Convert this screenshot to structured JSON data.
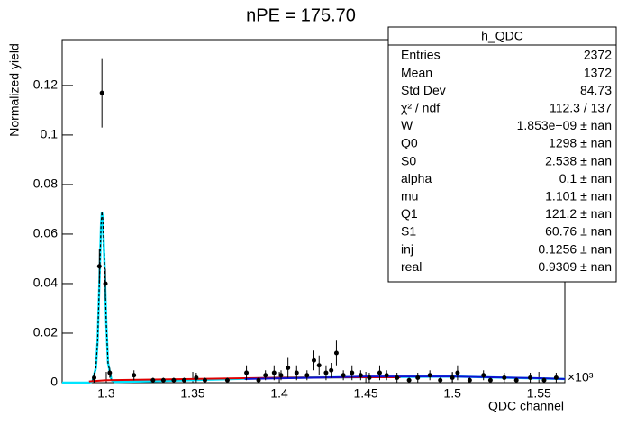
{
  "chart_data": {
    "type": "scatter",
    "title": "nPE = 175.70",
    "x_label": "QDC channel",
    "y_label": "Normalized yield",
    "x_exponent": "×10³",
    "xlim": [
      1.2745,
      1.565
    ],
    "ylim": [
      0,
      0.1385
    ],
    "xticks": [
      1.3,
      1.35,
      1.4,
      1.45,
      1.5,
      1.55
    ],
    "yticks": [
      0,
      0.02,
      0.04,
      0.06,
      0.08,
      0.1,
      0.12
    ],
    "series": [
      {
        "color": "#000000",
        "x": [
          1.293,
          1.296,
          1.2975,
          1.2995,
          1.302,
          1.316,
          1.327,
          1.333,
          1.339,
          1.345,
          1.352,
          1.357,
          1.37,
          1.381,
          1.388,
          1.392,
          1.397,
          1.401,
          1.405,
          1.41,
          1.416,
          1.42,
          1.423,
          1.427,
          1.43,
          1.433,
          1.437,
          1.442,
          1.447,
          1.452,
          1.458,
          1.462,
          1.468,
          1.475,
          1.48,
          1.487,
          1.493,
          1.5,
          1.503,
          1.51,
          1.518,
          1.522,
          1.53,
          1.537,
          1.545,
          1.553,
          1.56
        ],
        "values": [
          0.002,
          0.047,
          0.117,
          0.04,
          0.004,
          0.003,
          0.001,
          0.001,
          0.001,
          0.001,
          0.002,
          0.001,
          0.001,
          0.004,
          0.001,
          0.003,
          0.004,
          0.003,
          0.006,
          0.004,
          0.003,
          0.009,
          0.007,
          0.004,
          0.005,
          0.012,
          0.003,
          0.004,
          0.003,
          0.002,
          0.004,
          0.003,
          0.002,
          0.001,
          0.002,
          0.003,
          0.001,
          0.002,
          0.004,
          0.001,
          0.003,
          0.001,
          0.002,
          0.001,
          0.002,
          0.001,
          0.002
        ],
        "errors": [
          0.002,
          0.007,
          0.014,
          0.006,
          0.002,
          0.002,
          0.001,
          0.001,
          0.001,
          0.001,
          0.002,
          0.001,
          0.001,
          0.003,
          0.001,
          0.002,
          0.003,
          0.002,
          0.004,
          0.003,
          0.002,
          0.004,
          0.004,
          0.003,
          0.003,
          0.005,
          0.002,
          0.003,
          0.002,
          0.002,
          0.003,
          0.002,
          0.002,
          0.001,
          0.002,
          0.002,
          0.001,
          0.002,
          0.003,
          0.001,
          0.002,
          0.001,
          0.002,
          0.001,
          0.002,
          0.001,
          0.002
        ]
      }
    ],
    "lines": [
      {
        "color": "#00e5ff",
        "width": 2.5,
        "dashed": false,
        "x": [
          1.2745,
          1.29,
          1.292,
          1.294,
          1.295,
          1.296,
          1.297,
          1.2975,
          1.298,
          1.299,
          1.3,
          1.301,
          1.303,
          1.305,
          1.32,
          1.4,
          1.5,
          1.565
        ],
        "values": [
          0,
          0,
          0.0005,
          0.006,
          0.017,
          0.04,
          0.064,
          0.069,
          0.066,
          0.048,
          0.024,
          0.008,
          0.001,
          0.0003,
          0.0005,
          0.002,
          0.0025,
          0.0015
        ]
      },
      {
        "color": "#000000",
        "width": 1.2,
        "dashed": true,
        "x": [
          1.292,
          1.294,
          1.295,
          1.296,
          1.297,
          1.2975,
          1.298,
          1.299,
          1.3,
          1.301,
          1.303
        ],
        "values": [
          0.0005,
          0.006,
          0.017,
          0.04,
          0.064,
          0.069,
          0.066,
          0.048,
          0.024,
          0.008,
          0.001
        ]
      },
      {
        "color": "#e00000",
        "width": 2,
        "dashed": false,
        "x": [
          1.29,
          1.3,
          1.35,
          1.4,
          1.45,
          1.47
        ],
        "values": [
          0.0005,
          0.001,
          0.0015,
          0.002,
          0.0022,
          0.0022
        ]
      },
      {
        "color": "#1010d0",
        "width": 2,
        "dashed": false,
        "x": [
          1.38,
          1.42,
          1.45,
          1.5,
          1.55,
          1.565
        ],
        "values": [
          0.0015,
          0.002,
          0.0025,
          0.0025,
          0.0018,
          0.0015
        ]
      }
    ],
    "stats": {
      "title": "h_QDC",
      "rows": [
        [
          "Entries",
          "2372"
        ],
        [
          "Mean",
          "1372"
        ],
        [
          "Std Dev",
          "84.73"
        ],
        [
          "χ² / ndf",
          "112.3 / 137"
        ],
        [
          "W",
          "1.853e−09 ± nan"
        ],
        [
          "Q0",
          "1298 ± nan"
        ],
        [
          "S0",
          "2.538 ± nan"
        ],
        [
          "alpha",
          "0.1 ± nan"
        ],
        [
          "mu",
          "1.101 ± nan"
        ],
        [
          "Q1",
          "121.2 ± nan"
        ],
        [
          "S1",
          "60.76 ± nan"
        ],
        [
          "inj",
          "0.1256 ± nan"
        ],
        [
          "real",
          "0.9309 ± nan"
        ]
      ]
    }
  }
}
